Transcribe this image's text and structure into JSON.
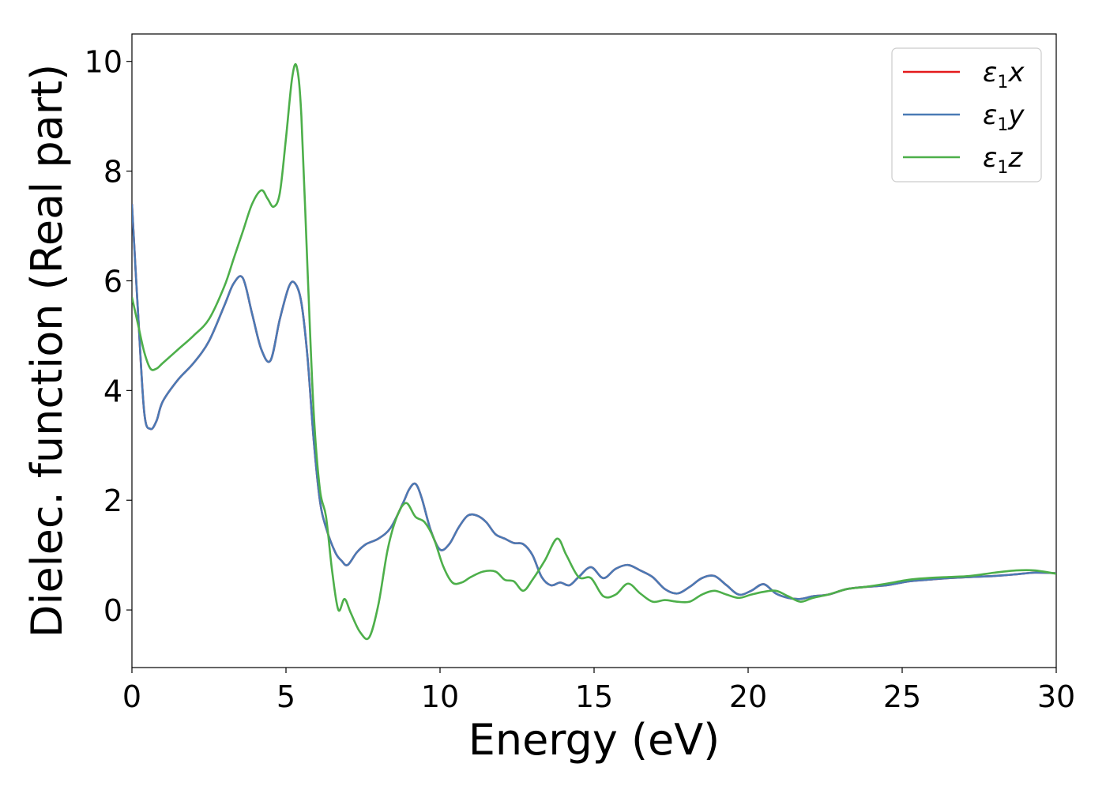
{
  "chart_data": {
    "type": "line",
    "xlabel": "Energy (eV)",
    "ylabel": "Dielec. function (Real part)",
    "xlim": [
      0,
      30
    ],
    "ylim": [
      -1.05,
      10.5
    ],
    "xticks": [
      0,
      5,
      10,
      15,
      20,
      25,
      30
    ],
    "yticks": [
      0,
      2,
      4,
      6,
      8,
      10
    ],
    "grid": false,
    "legend_position": "top-right",
    "series": [
      {
        "name": "ε1x",
        "legend": {
          "base": "ε",
          "sub": "1",
          "var": "x"
        },
        "color": "#e41a1c",
        "x": [
          0,
          0.2,
          0.4,
          0.6,
          0.8,
          1.0,
          1.5,
          2.0,
          2.5,
          3.0,
          3.3,
          3.6,
          3.9,
          4.2,
          4.5,
          4.8,
          5.1,
          5.3,
          5.5,
          5.7,
          5.9,
          6.1,
          6.3,
          6.6,
          6.8,
          7.0,
          7.3,
          7.6,
          8.0,
          8.4,
          8.8,
          9.0,
          9.2,
          9.4,
          9.7,
          10.0,
          10.3,
          10.6,
          10.9,
          11.2,
          11.5,
          11.8,
          12.1,
          12.4,
          12.7,
          13.0,
          13.3,
          13.6,
          13.9,
          14.2,
          14.5,
          14.9,
          15.3,
          15.7,
          16.1,
          16.5,
          16.9,
          17.3,
          17.7,
          18.1,
          18.5,
          18.9,
          19.3,
          19.7,
          20.1,
          20.5,
          20.9,
          21.3,
          21.7,
          22.1,
          22.6,
          23.2,
          23.8,
          24.5,
          25.2,
          25.8,
          26.5,
          27.2,
          28.0,
          28.7,
          29.3,
          30.0
        ],
        "y": [
          7.4,
          5.4,
          3.6,
          3.3,
          3.45,
          3.8,
          4.2,
          4.5,
          4.9,
          5.55,
          5.95,
          6.05,
          5.4,
          4.75,
          4.55,
          5.3,
          5.9,
          5.95,
          5.6,
          4.6,
          3.1,
          2.0,
          1.5,
          1.05,
          0.9,
          0.82,
          1.05,
          1.2,
          1.3,
          1.5,
          1.95,
          2.2,
          2.3,
          2.05,
          1.45,
          1.1,
          1.2,
          1.5,
          1.72,
          1.72,
          1.6,
          1.38,
          1.3,
          1.22,
          1.2,
          1.0,
          0.6,
          0.45,
          0.5,
          0.45,
          0.6,
          0.78,
          0.58,
          0.75,
          0.82,
          0.72,
          0.6,
          0.38,
          0.3,
          0.42,
          0.58,
          0.62,
          0.45,
          0.28,
          0.35,
          0.47,
          0.3,
          0.22,
          0.2,
          0.25,
          0.28,
          0.38,
          0.42,
          0.45,
          0.52,
          0.55,
          0.58,
          0.6,
          0.62,
          0.65,
          0.68,
          0.67
        ]
      },
      {
        "name": "ε1y",
        "legend": {
          "base": "ε",
          "sub": "1",
          "var": "y"
        },
        "color": "#4a7ab5",
        "x": [
          0,
          0.2,
          0.4,
          0.6,
          0.8,
          1.0,
          1.5,
          2.0,
          2.5,
          3.0,
          3.3,
          3.6,
          3.9,
          4.2,
          4.5,
          4.8,
          5.1,
          5.3,
          5.5,
          5.7,
          5.9,
          6.1,
          6.3,
          6.6,
          6.8,
          7.0,
          7.3,
          7.6,
          8.0,
          8.4,
          8.8,
          9.0,
          9.2,
          9.4,
          9.7,
          10.0,
          10.3,
          10.6,
          10.9,
          11.2,
          11.5,
          11.8,
          12.1,
          12.4,
          12.7,
          13.0,
          13.3,
          13.6,
          13.9,
          14.2,
          14.5,
          14.9,
          15.3,
          15.7,
          16.1,
          16.5,
          16.9,
          17.3,
          17.7,
          18.1,
          18.5,
          18.9,
          19.3,
          19.7,
          20.1,
          20.5,
          20.9,
          21.3,
          21.7,
          22.1,
          22.6,
          23.2,
          23.8,
          24.5,
          25.2,
          25.8,
          26.5,
          27.2,
          28.0,
          28.7,
          29.3,
          30.0
        ],
        "y": [
          7.4,
          5.4,
          3.6,
          3.3,
          3.45,
          3.8,
          4.2,
          4.5,
          4.9,
          5.55,
          5.95,
          6.05,
          5.4,
          4.75,
          4.55,
          5.3,
          5.9,
          5.95,
          5.6,
          4.6,
          3.1,
          2.0,
          1.5,
          1.05,
          0.9,
          0.82,
          1.05,
          1.2,
          1.3,
          1.5,
          1.95,
          2.2,
          2.3,
          2.05,
          1.45,
          1.1,
          1.2,
          1.5,
          1.72,
          1.72,
          1.6,
          1.38,
          1.3,
          1.22,
          1.2,
          1.0,
          0.6,
          0.45,
          0.5,
          0.45,
          0.6,
          0.78,
          0.58,
          0.75,
          0.82,
          0.72,
          0.6,
          0.38,
          0.3,
          0.42,
          0.58,
          0.62,
          0.45,
          0.28,
          0.35,
          0.47,
          0.3,
          0.22,
          0.2,
          0.25,
          0.28,
          0.38,
          0.42,
          0.45,
          0.52,
          0.55,
          0.58,
          0.6,
          0.62,
          0.65,
          0.68,
          0.67
        ]
      },
      {
        "name": "ε1z",
        "legend": {
          "base": "ε",
          "sub": "1",
          "var": "z"
        },
        "color": "#4daf4a",
        "x": [
          0,
          0.2,
          0.4,
          0.6,
          0.8,
          1.0,
          1.5,
          2.0,
          2.5,
          3.0,
          3.3,
          3.6,
          3.9,
          4.2,
          4.4,
          4.6,
          4.8,
          5.0,
          5.2,
          5.35,
          5.5,
          5.7,
          5.9,
          6.1,
          6.3,
          6.5,
          6.7,
          6.9,
          7.1,
          7.4,
          7.7,
          8.0,
          8.3,
          8.6,
          8.9,
          9.2,
          9.5,
          9.8,
          10.1,
          10.4,
          10.7,
          11.0,
          11.4,
          11.8,
          12.1,
          12.4,
          12.7,
          13.0,
          13.4,
          13.8,
          14.1,
          14.5,
          14.9,
          15.3,
          15.7,
          16.1,
          16.5,
          16.9,
          17.3,
          17.7,
          18.1,
          18.5,
          18.9,
          19.3,
          19.7,
          20.1,
          20.5,
          20.9,
          21.3,
          21.7,
          22.1,
          22.6,
          23.2,
          23.8,
          24.5,
          25.2,
          25.8,
          26.5,
          27.2,
          28.0,
          28.7,
          29.3,
          30.0
        ],
        "y": [
          5.7,
          5.2,
          4.7,
          4.4,
          4.4,
          4.5,
          4.75,
          5.0,
          5.3,
          5.9,
          6.4,
          6.9,
          7.4,
          7.65,
          7.5,
          7.35,
          7.6,
          8.6,
          9.7,
          9.9,
          9.0,
          6.2,
          3.6,
          2.2,
          1.7,
          0.7,
          0.0,
          0.2,
          -0.05,
          -0.4,
          -0.5,
          0.1,
          1.1,
          1.7,
          1.95,
          1.7,
          1.6,
          1.3,
          0.8,
          0.5,
          0.5,
          0.6,
          0.7,
          0.7,
          0.55,
          0.52,
          0.35,
          0.55,
          0.9,
          1.3,
          1.0,
          0.6,
          0.58,
          0.25,
          0.28,
          0.48,
          0.3,
          0.15,
          0.18,
          0.15,
          0.15,
          0.28,
          0.35,
          0.28,
          0.22,
          0.28,
          0.33,
          0.35,
          0.25,
          0.15,
          0.22,
          0.28,
          0.38,
          0.42,
          0.48,
          0.55,
          0.58,
          0.6,
          0.62,
          0.68,
          0.72,
          0.72,
          0.66
        ]
      }
    ]
  }
}
